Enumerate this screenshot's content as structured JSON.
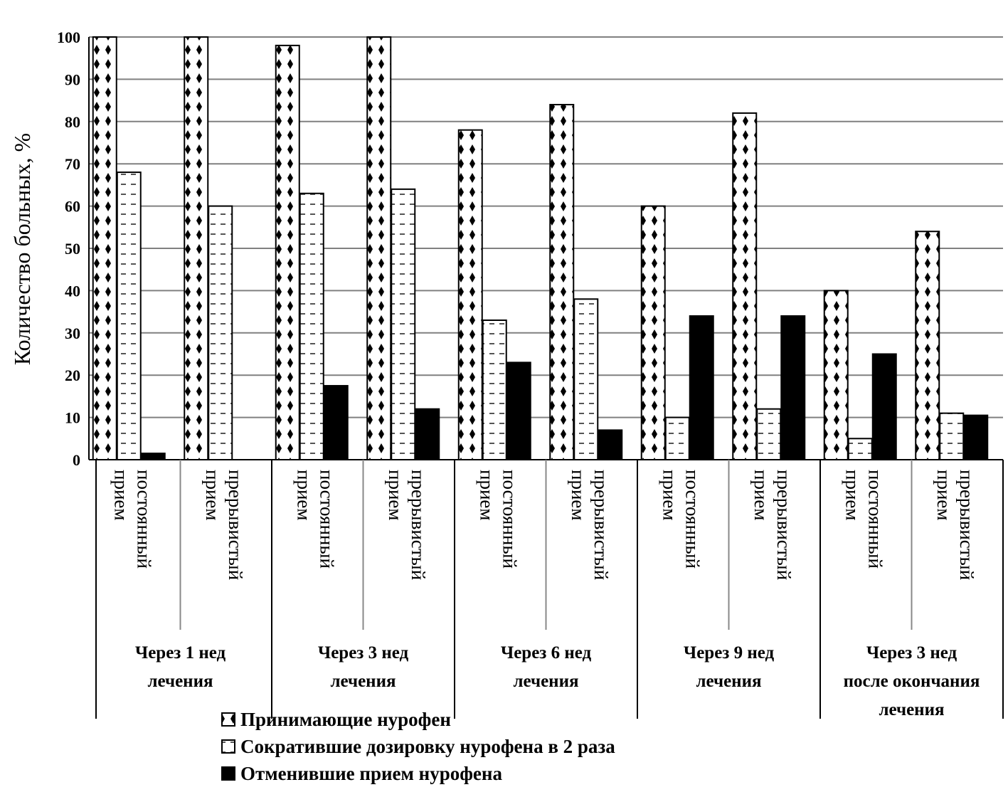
{
  "chart_data": {
    "type": "bar",
    "title": "",
    "ylabel": "Количество больных, %",
    "xlabel": "",
    "ylim": [
      0,
      100
    ],
    "yticks": [
      0,
      10,
      20,
      30,
      40,
      50,
      60,
      70,
      80,
      90,
      100
    ],
    "grid": true,
    "legend_position": "bottom-left",
    "categories": [
      "постоянный прием",
      "прерывистый прием",
      "постоянный прием",
      "прерывистый прием",
      "постоянный прием",
      "прерывистый прием",
      "постоянный прием",
      "прерывистый прием",
      "постоянный прием",
      "прерывистый прием"
    ],
    "category_lines": [
      [
        "постоянный",
        "прием"
      ],
      [
        "прерывистый",
        "прием"
      ],
      [
        "постоянный",
        "прием"
      ],
      [
        "прерывистый",
        "прием"
      ],
      [
        "постоянный",
        "прием"
      ],
      [
        "прерывистый",
        "прием"
      ],
      [
        "постоянный",
        "прием"
      ],
      [
        "прерывистый",
        "прием"
      ],
      [
        "постоянный",
        "прием"
      ],
      [
        "прерывистый",
        "прием"
      ]
    ],
    "groups": [
      {
        "label": [
          "Через 1 нед",
          "лечения"
        ],
        "span": 2
      },
      {
        "label": [
          "Через 3 нед",
          "лечения"
        ],
        "span": 2
      },
      {
        "label": [
          "Через 6 нед",
          "лечения"
        ],
        "span": 2
      },
      {
        "label": [
          "Через 9 нед",
          "лечения"
        ],
        "span": 2
      },
      {
        "label": [
          "Через 3 нед",
          "после окончания",
          "лечения"
        ],
        "span": 2
      }
    ],
    "series": [
      {
        "name": "Принимающие нурофен",
        "pattern": "diamond",
        "values": [
          100,
          100,
          98,
          100,
          78,
          84,
          60,
          82,
          40,
          54
        ]
      },
      {
        "name": "Сократившие дозировку нурофена в 2 раза",
        "pattern": "dash",
        "values": [
          68,
          60,
          63,
          64,
          33,
          38,
          10,
          12,
          5,
          11
        ]
      },
      {
        "name": "Отменившие прием нурофена",
        "pattern": "solid",
        "values": [
          1.5,
          0,
          17.5,
          12,
          23,
          7,
          34,
          34,
          25,
          10.5
        ]
      }
    ],
    "colors": {
      "fill_dark": "#000000",
      "fill_light": "#ffffff",
      "grid": "#808080",
      "axis": "#000000"
    }
  }
}
